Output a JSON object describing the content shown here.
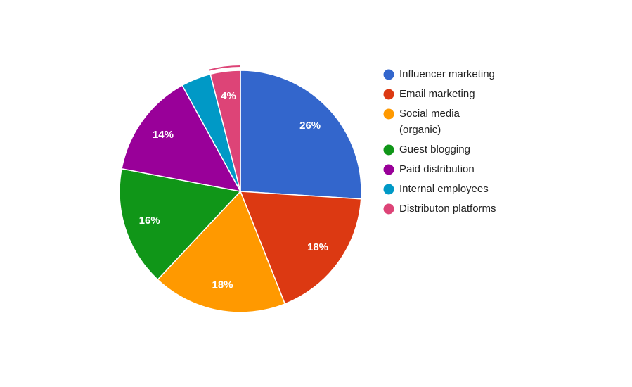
{
  "chart_data": {
    "type": "pie",
    "categories": [
      "Influencer marketing",
      "Email marketing",
      "Social media (organic)",
      "Guest blogging",
      "Paid distribution",
      "Internal employees",
      "Distributon platforms"
    ],
    "values": [
      26,
      18,
      18,
      16,
      14,
      4,
      4
    ],
    "value_labels": [
      "26%",
      "18%",
      "18%",
      "16%",
      "14%",
      null,
      "4%"
    ],
    "colors": [
      "#3366cc",
      "#dc3912",
      "#ff9900",
      "#109618",
      "#990099",
      "#0099c6",
      "#dd4477"
    ],
    "legend": "right"
  }
}
